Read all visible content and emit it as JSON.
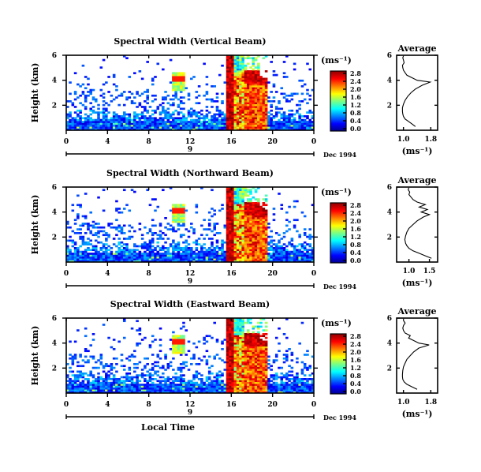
{
  "chart_data": [
    {
      "type": "heatmap",
      "title": "Spectral Width (Vertical Beam)",
      "ylabel": "Height (km)",
      "unit_label": "(ms⁻¹)",
      "x_ticks": [
        "0",
        "4",
        "8",
        "12",
        "16",
        "20",
        "0"
      ],
      "date_day": "9",
      "date_label": "Dec 1994",
      "y_ticks": [
        "2",
        "4",
        "6"
      ],
      "colorbar_ticks": [
        "0.0",
        "0.4",
        "0.8",
        "1.2",
        "1.6",
        "2.0",
        "2.4",
        "2.8"
      ],
      "xlim_hours": [
        0,
        24
      ],
      "ylim_km": [
        0,
        6
      ],
      "clim": [
        0,
        3.0
      ]
    },
    {
      "type": "line",
      "title": "Average",
      "xlabel": "(ms⁻¹)",
      "x_ticks": [
        "1.0",
        "1.8"
      ],
      "y_ticks": [
        "2",
        "4",
        "6"
      ],
      "xlim": [
        0.8,
        2.0
      ],
      "ylim": [
        0,
        6
      ],
      "series": [
        {
          "x": [
            1.35,
            1.25,
            1.15,
            1.05,
            1.0,
            0.98,
            0.97,
            0.97,
            1.0,
            1.05,
            1.12,
            1.22,
            1.35,
            1.55,
            1.78,
            1.4,
            1.25,
            1.1,
            1.05,
            1.0,
            0.98,
            0.97,
            1.02,
            1.0,
            0.98,
            1.0
          ],
          "y": [
            0.3,
            0.5,
            0.7,
            0.9,
            1.1,
            1.3,
            1.5,
            1.8,
            2.1,
            2.4,
            2.7,
            3.0,
            3.3,
            3.6,
            3.85,
            4.0,
            4.2,
            4.4,
            4.6,
            4.8,
            5.0,
            5.2,
            5.4,
            5.6,
            5.8,
            5.95
          ]
        }
      ]
    },
    {
      "type": "heatmap",
      "title": "Spectral Width (Northward Beam)",
      "ylabel": "Height (km)",
      "unit_label": "(ms⁻¹)",
      "x_ticks": [
        "0",
        "4",
        "8",
        "12",
        "16",
        "20",
        "0"
      ],
      "date_day": "9",
      "date_label": "Dec 1994",
      "y_ticks": [
        "2",
        "4",
        "6"
      ],
      "colorbar_ticks": [
        "0.0",
        "0.4",
        "0.8",
        "1.2",
        "1.6",
        "2.0",
        "2.4",
        "2.8"
      ],
      "xlim_hours": [
        0,
        24
      ],
      "ylim_km": [
        0,
        6
      ],
      "clim": [
        0,
        3.0
      ]
    },
    {
      "type": "line",
      "title": "Average",
      "xlabel": "(ms⁻¹)",
      "x_ticks": [
        "1.0",
        "1.5"
      ],
      "y_ticks": [
        "2",
        "4",
        "6"
      ],
      "xlim": [
        0.7,
        1.7
      ],
      "ylim": [
        0,
        6
      ],
      "series": [
        {
          "x": [
            1.55,
            1.4,
            1.25,
            1.1,
            1.0,
            0.95,
            0.92,
            0.9,
            0.92,
            0.95,
            1.0,
            1.1,
            1.2,
            1.35,
            1.5,
            1.3,
            1.45,
            1.25,
            1.4,
            1.2,
            1.1,
            1.05,
            1.0,
            1.02,
            0.98,
            1.0
          ],
          "y": [
            0.3,
            0.5,
            0.7,
            0.9,
            1.1,
            1.3,
            1.5,
            1.8,
            2.1,
            2.4,
            2.7,
            3.0,
            3.3,
            3.6,
            3.8,
            4.0,
            4.2,
            4.4,
            4.6,
            4.8,
            5.0,
            5.2,
            5.4,
            5.6,
            5.8,
            5.95
          ]
        }
      ]
    },
    {
      "type": "heatmap",
      "title": "Spectral Width (Eastward Beam)",
      "ylabel": "Height (km)",
      "unit_label": "(ms⁻¹)",
      "x_ticks": [
        "0",
        "4",
        "8",
        "12",
        "16",
        "20",
        "0"
      ],
      "date_day": "9",
      "date_label": "Dec 1994",
      "xlabel": "Local Time",
      "y_ticks": [
        "2",
        "4",
        "6"
      ],
      "colorbar_ticks": [
        "0.0",
        "0.4",
        "0.8",
        "1.2",
        "1.6",
        "2.0",
        "2.4",
        "2.8"
      ],
      "xlim_hours": [
        0,
        24
      ],
      "ylim_km": [
        0,
        6
      ],
      "clim": [
        0,
        3.0
      ]
    },
    {
      "type": "line",
      "title": "Average",
      "xlabel": "(ms⁻¹)",
      "x_ticks": [
        "1.0",
        "1.8"
      ],
      "y_ticks": [
        "2",
        "4",
        "6"
      ],
      "xlim": [
        0.8,
        2.0
      ],
      "ylim": [
        0,
        6
      ],
      "series": [
        {
          "x": [
            1.4,
            1.25,
            1.1,
            1.02,
            0.98,
            0.97,
            0.97,
            0.98,
            1.0,
            1.05,
            1.1,
            1.2,
            1.3,
            1.45,
            1.75,
            1.45,
            1.3,
            1.15,
            1.2,
            1.05,
            1.0,
            0.98,
            1.0,
            1.05,
            1.0,
            1.0
          ],
          "y": [
            0.3,
            0.5,
            0.7,
            0.9,
            1.1,
            1.3,
            1.5,
            1.8,
            2.1,
            2.4,
            2.7,
            3.0,
            3.3,
            3.6,
            3.85,
            4.0,
            4.2,
            4.4,
            4.6,
            4.8,
            5.0,
            5.2,
            5.4,
            5.6,
            5.8,
            5.95
          ]
        }
      ]
    }
  ]
}
